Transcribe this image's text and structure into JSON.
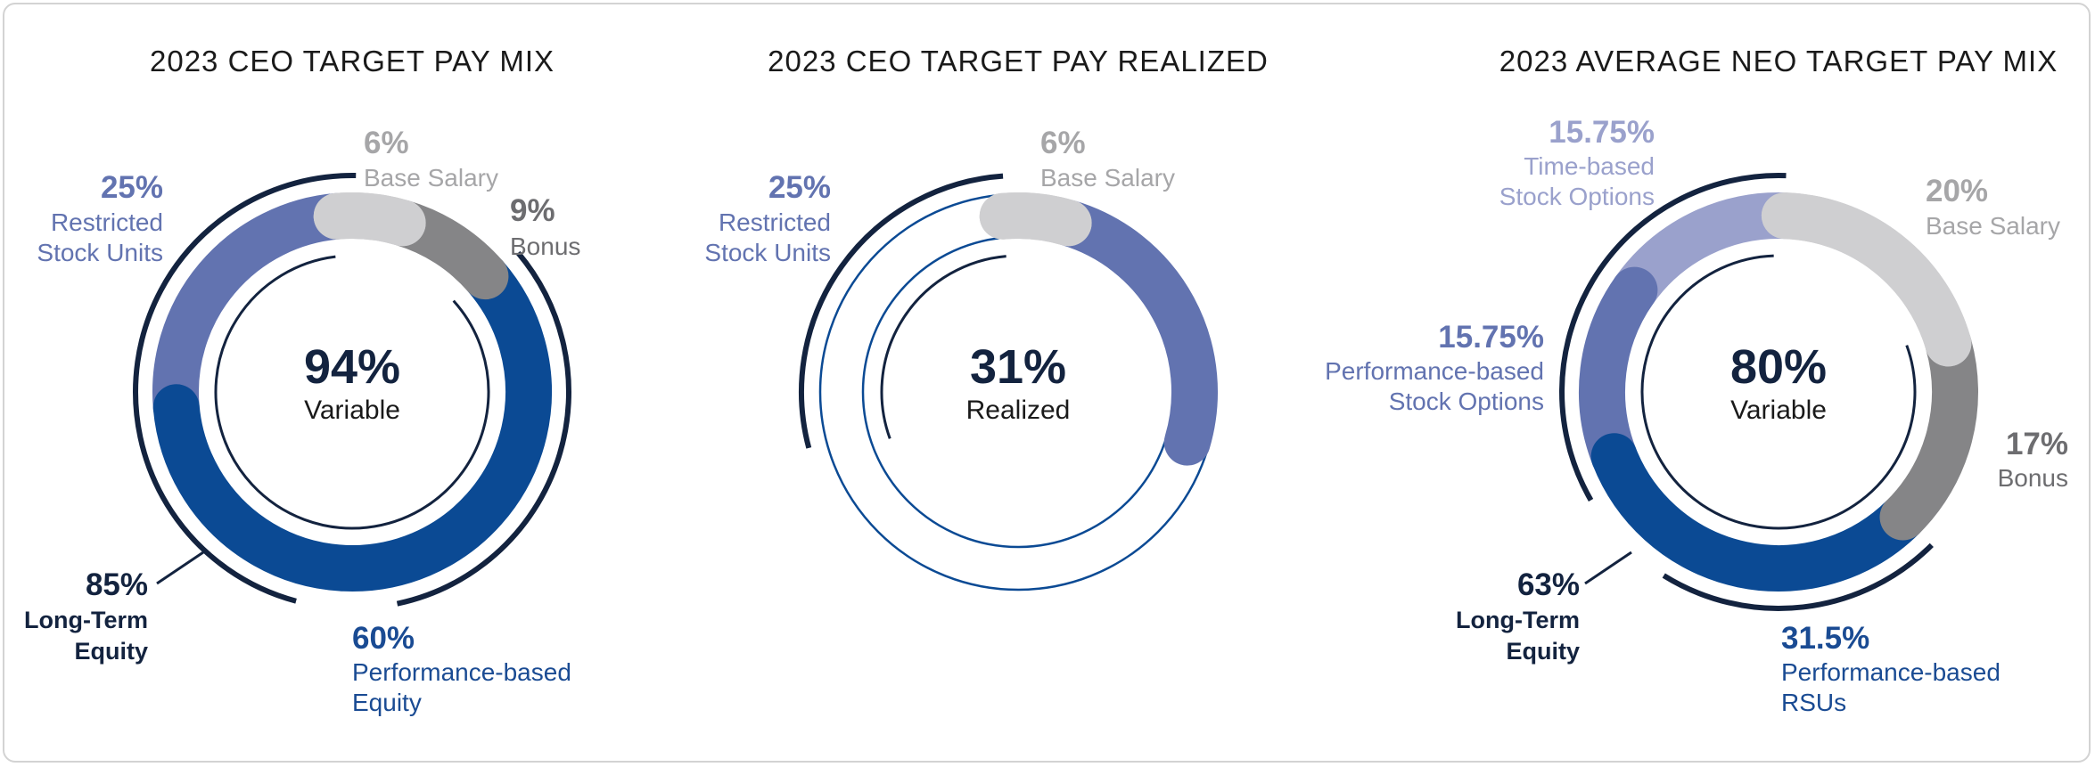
{
  "colors": {
    "navy": "#13233f",
    "dark_blue": "#0b4a94",
    "medium_blue": "#6273b0",
    "light_purple": "#9aa1cc",
    "light_gray": "#cfcfd1",
    "dark_gray": "#858587",
    "label_gray": "#a6a6a8",
    "label_blue": "#1a4b93"
  },
  "chart_data": [
    {
      "type": "pie",
      "title": "2023 CEO TARGET PAY MIX",
      "center": {
        "value": "94%",
        "label": "Variable"
      },
      "slices": [
        {
          "value": 6,
          "pct": "6%",
          "label": [
            "Base Salary"
          ],
          "color": "#cfcfd1",
          "label_color": "#a6a6a8"
        },
        {
          "value": 9,
          "pct": "9%",
          "label": [
            "Bonus"
          ],
          "color": "#858587",
          "label_color": "#6d6d70"
        },
        {
          "value": 60,
          "pct": "60%",
          "label": [
            "Performance-based",
            "Equity"
          ],
          "color": "#0b4a94",
          "label_color": "#1a4b93"
        },
        {
          "value": 25,
          "pct": "25%",
          "label": [
            "Restricted",
            "Stock Units"
          ],
          "color": "#6273b0",
          "label_color": "#6273b0"
        }
      ],
      "group": {
        "pct": "85%",
        "label": [
          "Long-Term",
          "Equity"
        ]
      }
    },
    {
      "type": "pie",
      "title": "2023 CEO TARGET PAY REALIZED",
      "center": {
        "value": "31%",
        "label": "Realized"
      },
      "slices": [
        {
          "value": 6,
          "pct": "6%",
          "label": [
            "Base Salary"
          ],
          "color": "#cfcfd1",
          "label_color": "#a6a6a8"
        },
        {
          "value": 25,
          "pct": "25%",
          "label": [
            "Restricted",
            "Stock Units"
          ],
          "color": "#6273b0",
          "label_color": "#6273b0"
        }
      ]
    },
    {
      "type": "pie",
      "title": "2023 AVERAGE NEO TARGET PAY MIX",
      "center": {
        "value": "80%",
        "label": "Variable"
      },
      "slices": [
        {
          "value": 20,
          "pct": "20%",
          "label": [
            "Base Salary"
          ],
          "color": "#cfcfd1",
          "label_color": "#a6a6a8"
        },
        {
          "value": 17,
          "pct": "17%",
          "label": [
            "Bonus"
          ],
          "color": "#858587",
          "label_color": "#6d6d70"
        },
        {
          "value": 31.5,
          "pct": "31.5%",
          "label": [
            "Performance-based",
            "RSUs"
          ],
          "color": "#0b4a94",
          "label_color": "#1a4b93"
        },
        {
          "value": 15.75,
          "pct": "15.75%",
          "label": [
            "Performance-based",
            "Stock Options"
          ],
          "color": "#6273b0",
          "label_color": "#6273b0"
        },
        {
          "value": 15.75,
          "pct": "15.75%",
          "label": [
            "Time-based",
            "Stock Options"
          ],
          "color": "#9aa1cc",
          "label_color": "#9aa1cc"
        }
      ],
      "group": {
        "pct": "63%",
        "label": [
          "Long-Term",
          "Equity"
        ]
      }
    }
  ]
}
